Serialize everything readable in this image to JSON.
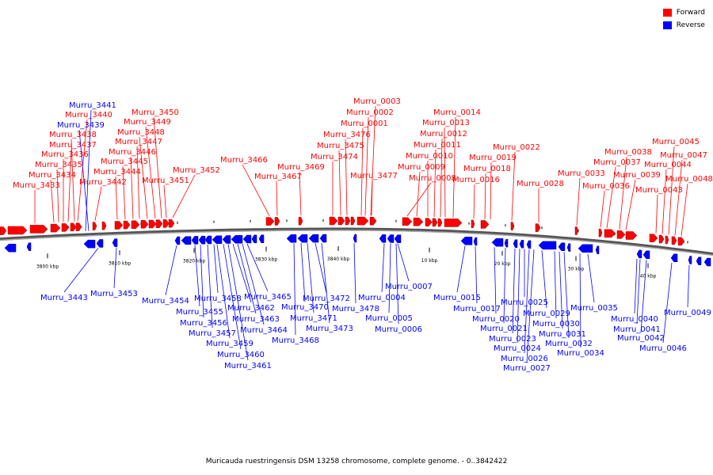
{
  "caption": "Muricauda ruestringensis DSM 13258 chromosome, complete genome. - 0..3842422",
  "legend": [
    {
      "label": "Forward",
      "color": "#ff0000"
    },
    {
      "label": "Reverse",
      "color": "#0000ff"
    }
  ],
  "colors": {
    "forward": "#ff0000",
    "reverse": "#0000ff",
    "backbone": "#808080"
  },
  "ticks": [
    "3800 kbp",
    "3810 kbp",
    "3820 kbp",
    "3830 kbp",
    "3840 kbp",
    "10 kbp",
    "20 kbp",
    "30 kbp",
    "40 kbp"
  ],
  "forward_genes": [
    "Murru_3433",
    "Murru_3434",
    "Murru_3435",
    "Murru_3436",
    "Murru_3437",
    "Murru_3438",
    "Murru_3440",
    "Murru_3442",
    "Murru_3444",
    "Murru_3445",
    "Murru_3446",
    "Murru_3447",
    "Murru_3448",
    "Murru_3449",
    "Murru_3450",
    "Murru_3451",
    "Murru_3452",
    "Murru_3466",
    "Murru_3467",
    "Murru_3469",
    "Murru_3474",
    "Murru_3475",
    "Murru_3476",
    "Murru_0001",
    "Murru_0002",
    "Murru_0003",
    "Murru_3477",
    "Murru_0008",
    "Murru_0009",
    "Murru_0010",
    "Murru_0011",
    "Murru_0012",
    "Murru_0013",
    "Murru_0014",
    "Murru_0016",
    "Murru_0018",
    "Murru_0019",
    "Murru_0022",
    "Murru_0028",
    "Murru_0033",
    "Murru_0036",
    "Murru_0037",
    "Murru_0038",
    "Murru_0039",
    "Murru_0043",
    "Murru_0044",
    "Murru_0045",
    "Murru_0047",
    "Murru_0048"
  ],
  "reverse_genes": [
    "Murru_3441",
    "Murru_3439",
    "Murru_3443",
    "Murru_3453",
    "Murru_3454",
    "Murru_3455",
    "Murru_3456",
    "Murru_3457",
    "Murru_3458",
    "Murru_3459",
    "Murru_3460",
    "Murru_3461",
    "Murru_3462",
    "Murru_3463",
    "Murru_3464",
    "Murru_3465",
    "Murru_3468",
    "Murru_3470",
    "Murru_3471",
    "Murru_3472",
    "Murru_3473",
    "Murru_3478",
    "Murru_0004",
    "Murru_0005",
    "Murru_0006",
    "Murru_0007",
    "Murru_0015",
    "Murru_0017",
    "Murru_0020",
    "Murru_0021",
    "Murru_0023",
    "Murru_0024",
    "Murru_0025",
    "Murru_0026",
    "Murru_0027",
    "Murru_0029",
    "Murru_0030",
    "Murru_0031",
    "Murru_0032",
    "Murru_0034",
    "Murru_0035",
    "Murru_0040",
    "Murru_0041",
    "Murru_0042",
    "Murru_0046",
    "Murru_0049"
  ]
}
